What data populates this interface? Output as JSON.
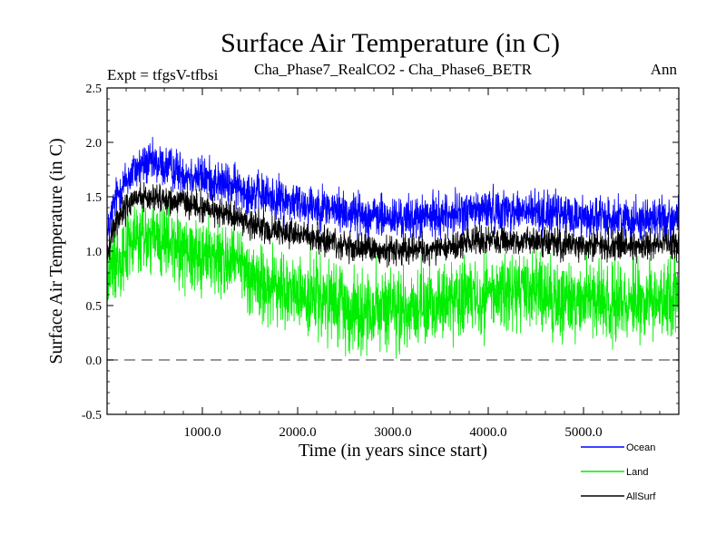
{
  "chart_data": {
    "type": "line",
    "title": "Surface Air Temperature (in C)",
    "subtitle_left": "Expt = tfgsV-tfbsi",
    "subtitle_center": "Cha_Phase7_RealCO2 - Cha_Phase6_BETR",
    "subtitle_right": "Ann",
    "xlabel": "Time (in years since start)",
    "ylabel": "Surface Air Temperature (in C)",
    "xlim": [
      0,
      6000
    ],
    "ylim": [
      -0.5,
      2.5
    ],
    "x_ticks": [
      1000,
      2000,
      3000,
      4000,
      5000
    ],
    "x_tick_labels": [
      "1000.0",
      "2000.0",
      "3000.0",
      "4000.0",
      "5000.0"
    ],
    "y_ticks": [
      -0.5,
      0.0,
      0.5,
      1.0,
      1.5,
      2.0,
      2.5
    ],
    "y_tick_labels": [
      "-0.5",
      "0.0",
      "0.5",
      "1.0",
      "1.5",
      "2.0",
      "2.5"
    ],
    "reference_line": 0.0,
    "legend": {
      "placement": "bottom-right"
    },
    "series": [
      {
        "name": "Ocean",
        "color": "#0000ff",
        "x": [
          0,
          50,
          100,
          200,
          300,
          400,
          500,
          600,
          700,
          800,
          900,
          1000,
          1100,
          1200,
          1300,
          1400,
          1500,
          1600,
          1700,
          1800,
          1900,
          2000,
          2100,
          2200,
          2300,
          2400,
          2500,
          2600,
          2700,
          2800,
          2900,
          3000,
          3100,
          3200,
          3300,
          3400,
          3500,
          3600,
          3700,
          3800,
          3900,
          4000,
          4100,
          4200,
          4300,
          4400,
          4500,
          4600,
          4700,
          4800,
          4900,
          5000,
          5100,
          5200,
          5300,
          5400,
          5500,
          5600,
          5700,
          5800,
          5900,
          6000
        ],
        "values": [
          1.1,
          1.35,
          1.5,
          1.65,
          1.75,
          1.8,
          1.8,
          1.78,
          1.75,
          1.72,
          1.7,
          1.68,
          1.65,
          1.62,
          1.6,
          1.58,
          1.55,
          1.52,
          1.5,
          1.48,
          1.46,
          1.45,
          1.43,
          1.42,
          1.4,
          1.38,
          1.36,
          1.35,
          1.33,
          1.32,
          1.31,
          1.3,
          1.3,
          1.3,
          1.31,
          1.32,
          1.33,
          1.34,
          1.35,
          1.36,
          1.37,
          1.38,
          1.38,
          1.38,
          1.37,
          1.36,
          1.36,
          1.35,
          1.34,
          1.33,
          1.32,
          1.32,
          1.31,
          1.3,
          1.3,
          1.3,
          1.3,
          1.3,
          1.3,
          1.3,
          1.3,
          1.3
        ],
        "noise": 0.18
      },
      {
        "name": "Land",
        "color": "#00ee00",
        "x": [
          0,
          50,
          100,
          200,
          300,
          400,
          500,
          600,
          700,
          800,
          900,
          1000,
          1100,
          1200,
          1300,
          1400,
          1500,
          1600,
          1700,
          1800,
          1900,
          2000,
          2100,
          2200,
          2300,
          2400,
          2500,
          2600,
          2700,
          2800,
          2900,
          3000,
          3100,
          3200,
          3300,
          3400,
          3500,
          3600,
          3700,
          3800,
          3900,
          4000,
          4100,
          4200,
          4300,
          4400,
          4500,
          4600,
          4700,
          4800,
          4900,
          5000,
          5100,
          5200,
          5300,
          5400,
          5500,
          5600,
          5700,
          5800,
          5900,
          6000
        ],
        "values": [
          0.75,
          0.85,
          0.95,
          1.05,
          1.1,
          1.12,
          1.1,
          1.08,
          1.05,
          1.02,
          1.0,
          0.98,
          0.95,
          0.92,
          0.9,
          0.85,
          0.78,
          0.72,
          0.68,
          0.65,
          0.62,
          0.6,
          0.58,
          0.55,
          0.52,
          0.5,
          0.48,
          0.47,
          0.46,
          0.45,
          0.45,
          0.45,
          0.46,
          0.47,
          0.48,
          0.5,
          0.52,
          0.54,
          0.56,
          0.58,
          0.6,
          0.62,
          0.63,
          0.63,
          0.62,
          0.61,
          0.6,
          0.58,
          0.56,
          0.55,
          0.55,
          0.55,
          0.55,
          0.55,
          0.55,
          0.55,
          0.55,
          0.56,
          0.57,
          0.58,
          0.59,
          0.6
        ],
        "noise": 0.33
      },
      {
        "name": "AllSurf",
        "color": "#000000",
        "x": [
          0,
          50,
          100,
          200,
          300,
          400,
          500,
          600,
          700,
          800,
          900,
          1000,
          1100,
          1200,
          1300,
          1400,
          1500,
          1600,
          1700,
          1800,
          1900,
          2000,
          2100,
          2200,
          2300,
          2400,
          2500,
          2600,
          2700,
          2800,
          2900,
          3000,
          3100,
          3200,
          3300,
          3400,
          3500,
          3600,
          3700,
          3800,
          3900,
          4000,
          4100,
          4200,
          4300,
          4400,
          4500,
          4600,
          4700,
          4800,
          4900,
          5000,
          5100,
          5200,
          5300,
          5400,
          5500,
          5600,
          5700,
          5800,
          5900,
          6000
        ],
        "values": [
          0.95,
          1.15,
          1.3,
          1.42,
          1.48,
          1.5,
          1.5,
          1.48,
          1.46,
          1.44,
          1.42,
          1.4,
          1.38,
          1.35,
          1.33,
          1.3,
          1.26,
          1.22,
          1.2,
          1.18,
          1.16,
          1.15,
          1.13,
          1.11,
          1.08,
          1.06,
          1.04,
          1.03,
          1.02,
          1.01,
          1.0,
          1.0,
          1.0,
          1.01,
          1.02,
          1.03,
          1.04,
          1.05,
          1.07,
          1.08,
          1.09,
          1.1,
          1.11,
          1.11,
          1.1,
          1.09,
          1.09,
          1.08,
          1.07,
          1.06,
          1.06,
          1.06,
          1.05,
          1.05,
          1.05,
          1.05,
          1.05,
          1.05,
          1.06,
          1.06,
          1.07,
          1.07
        ],
        "noise": 0.12
      }
    ]
  }
}
